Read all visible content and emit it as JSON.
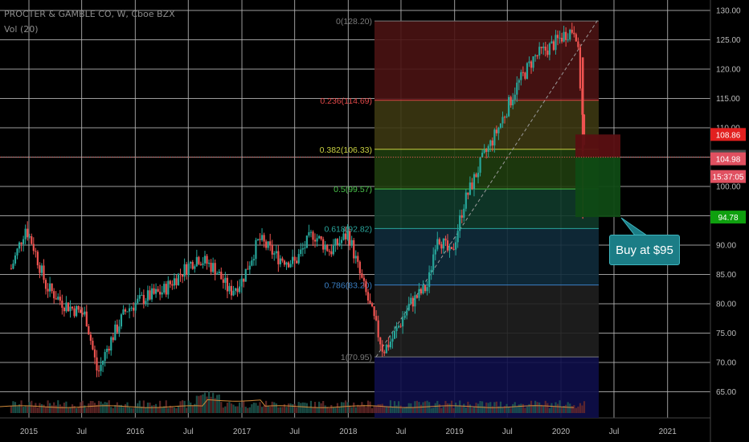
{
  "header": {
    "symbol_line": "PROCTER & GAMBLE CO, W, Cboe BZX",
    "volume_line": "Vol (20)"
  },
  "callout": {
    "text": "Buy at $95"
  },
  "chart_data": {
    "type": "candlestick",
    "title": "PROCTER & GAMBLE CO, W, Cboe BZX",
    "y_axis": {
      "ticks": [
        "130.00",
        "125.00",
        "120.00",
        "115.00",
        "110.00",
        "105.00",
        "100.00",
        "95.00",
        "90.00",
        "85.00",
        "80.00",
        "75.00",
        "70.00",
        "65.00"
      ],
      "ylim": [
        61.5,
        130.8
      ]
    },
    "x_axis": {
      "ticks": [
        "2015",
        "Jul",
        "2016",
        "Jul",
        "2017",
        "Jul",
        "2018",
        "Jul",
        "2019",
        "Jul",
        "2020",
        "Jul",
        "2021"
      ]
    },
    "price_anchors": [
      [
        "2014-11-01",
        86
      ],
      [
        "2014-12-20",
        93
      ],
      [
        "2015-01-15",
        90
      ],
      [
        "2015-03-01",
        83
      ],
      [
        "2015-05-01",
        80
      ],
      [
        "2015-07-15",
        78
      ],
      [
        "2015-08-25",
        68
      ],
      [
        "2015-10-01",
        73
      ],
      [
        "2015-12-01",
        79
      ],
      [
        "2016-02-01",
        81
      ],
      [
        "2016-04-01",
        82
      ],
      [
        "2016-06-01",
        85
      ],
      [
        "2016-08-01",
        88
      ],
      [
        "2016-10-01",
        86
      ],
      [
        "2016-11-20",
        82
      ],
      [
        "2017-01-01",
        84
      ],
      [
        "2017-03-01",
        91
      ],
      [
        "2017-05-01",
        88
      ],
      [
        "2017-07-01",
        87
      ],
      [
        "2017-09-01",
        92
      ],
      [
        "2017-11-01",
        89
      ],
      [
        "2018-01-01",
        92
      ],
      [
        "2018-02-10",
        85
      ],
      [
        "2018-03-20",
        79
      ],
      [
        "2018-05-01",
        72
      ],
      [
        "2018-06-01",
        74
      ],
      [
        "2018-08-01",
        80
      ],
      [
        "2018-10-01",
        83
      ],
      [
        "2018-11-01",
        92
      ],
      [
        "2018-12-20",
        88
      ],
      [
        "2019-02-01",
        97
      ],
      [
        "2019-04-01",
        104
      ],
      [
        "2019-06-01",
        110
      ],
      [
        "2019-08-01",
        117
      ],
      [
        "2019-10-01",
        122
      ],
      [
        "2019-12-01",
        124
      ],
      [
        "2020-01-15",
        126
      ],
      [
        "2020-02-20",
        127
      ],
      [
        "2020-03-01",
        122
      ],
      [
        "2020-03-23",
        104.98
      ]
    ],
    "fibonacci": {
      "high": 128.2,
      "low": 70.95,
      "levels": [
        {
          "ratio": 0,
          "label": "0(128.20)",
          "color": "#7a7a7a",
          "fill": "#4a1313"
        },
        {
          "ratio": 0.236,
          "label": "0.236(114.69)",
          "color": "#e04848",
          "fill": "#3c3712"
        },
        {
          "ratio": 0.382,
          "label": "0.382(106.33)",
          "color": "#c8d040",
          "fill": "#1f3d0e"
        },
        {
          "ratio": 0.5,
          "label": "0.5(99.57)",
          "color": "#49c24a",
          "fill": "#0f3a2a"
        },
        {
          "ratio": 0.618,
          "label": "0.618(92.82)",
          "color": "#2aa59b",
          "fill": "#0f2b3b"
        },
        {
          "ratio": 0.786,
          "label": "0.786(83.20)",
          "color": "#3a7fc4",
          "fill": "#1f1f1f"
        },
        {
          "ratio": 1,
          "label": "1(70.95)",
          "color": "#7a7a7a",
          "fill": "#0e0e4a"
        }
      ]
    },
    "price_labels": [
      {
        "value": "108.86",
        "price": 108.86,
        "color": "#e2201f"
      },
      {
        "value": "104.99",
        "price": 104.99,
        "color": "#4a4a4a"
      },
      {
        "value": "104.98",
        "price": 104.98,
        "color": "#e05060"
      },
      {
        "value": "15:37:05",
        "price": 104.98,
        "color": "#e05060"
      },
      {
        "value": "94.78",
        "price": 94.78,
        "color": "#0fa00f"
      }
    ],
    "position": {
      "entry": 94.78,
      "target": 108.86,
      "current": 104.99
    },
    "volume_series": "Vol (20)"
  }
}
